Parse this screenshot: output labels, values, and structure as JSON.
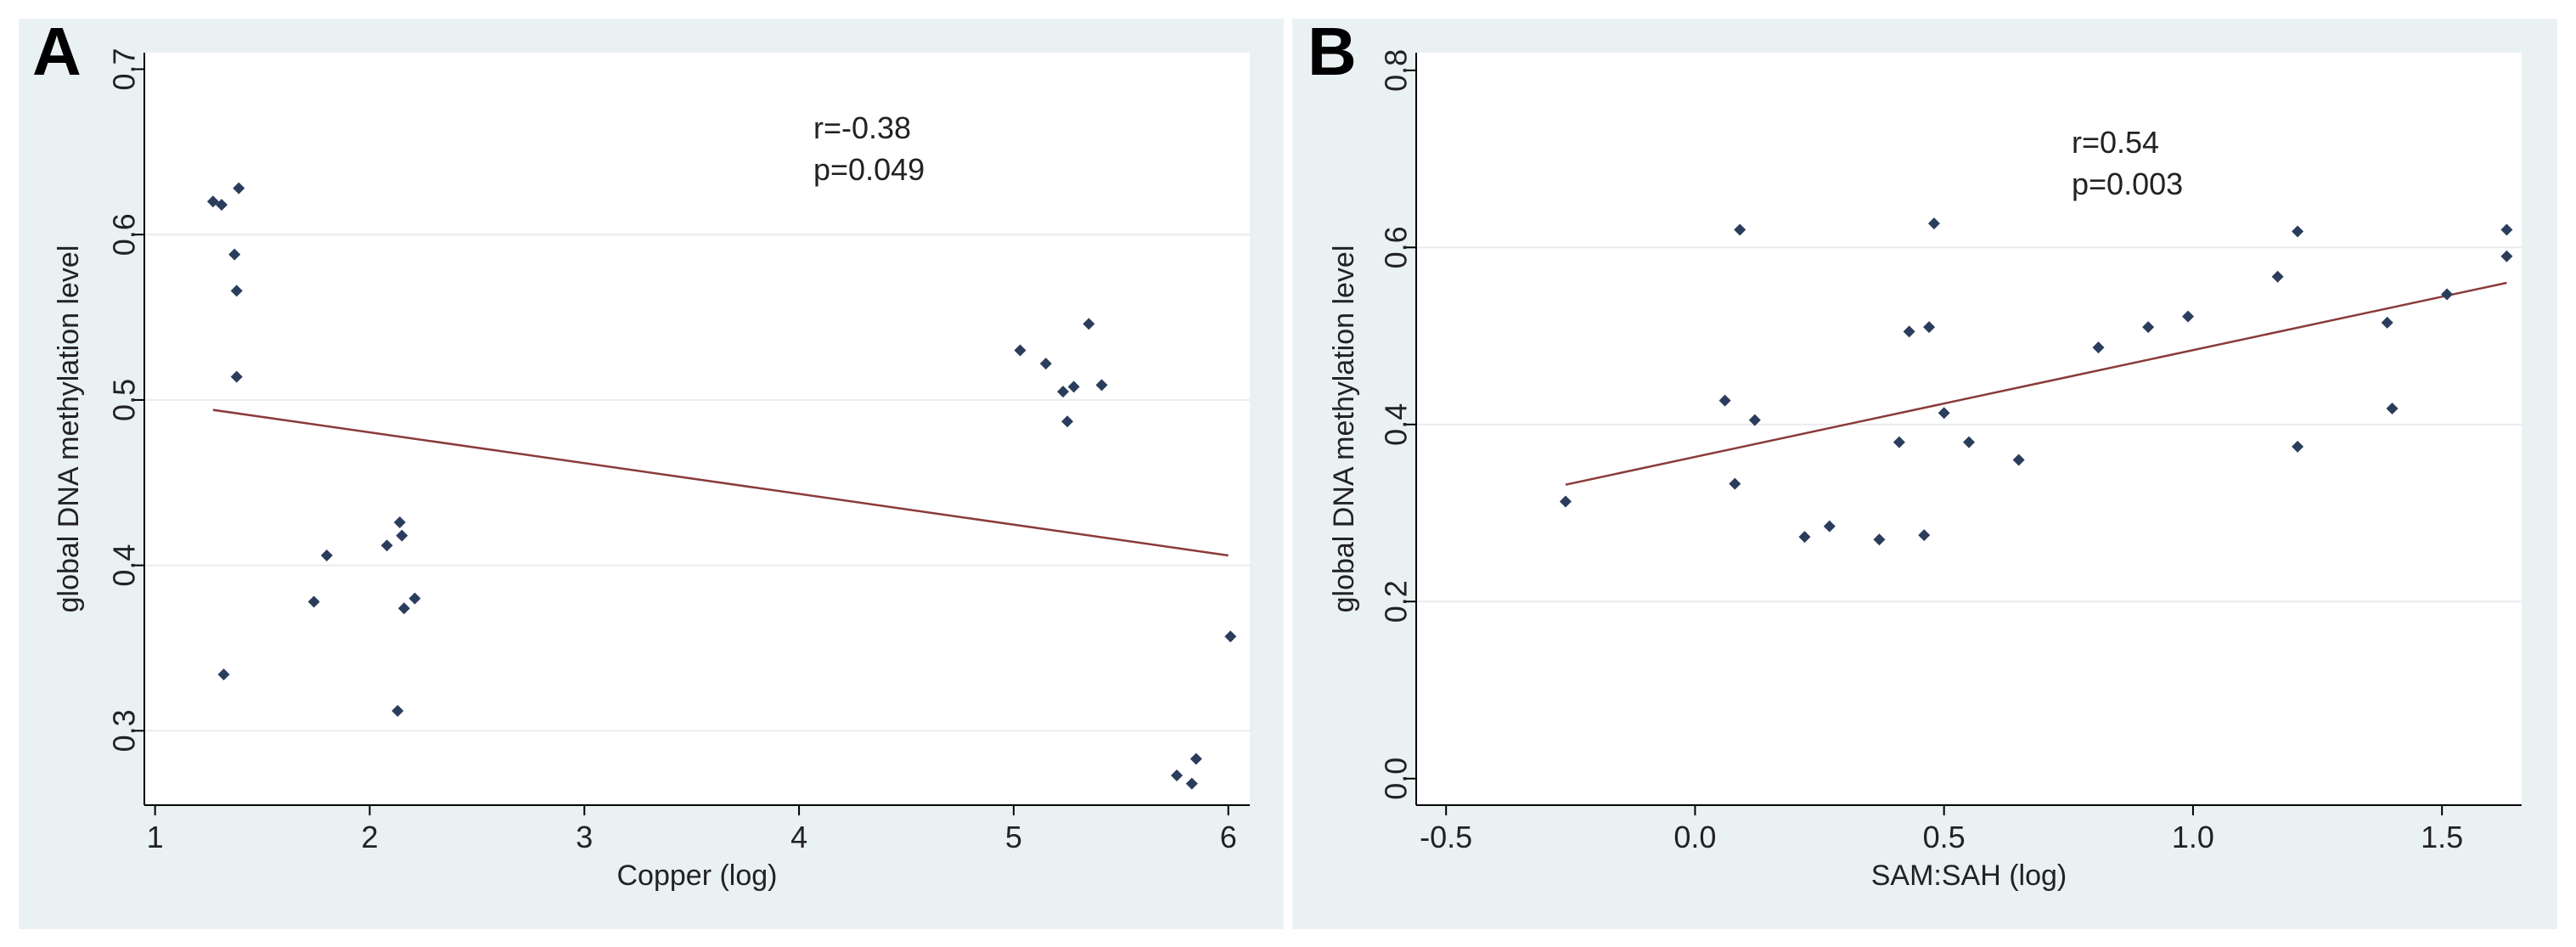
{
  "chart_data": [
    {
      "panel_label": "A",
      "type": "scatter",
      "xlabel": "Copper (log)",
      "ylabel": "global DNA methylation level",
      "xlim": [
        0.95,
        6.1
      ],
      "ylim": [
        0.255,
        0.71
      ],
      "xticks": [
        1,
        2,
        3,
        4,
        5,
        6
      ],
      "xtick_labels": [
        "1",
        "2",
        "3",
        "4",
        "5",
        "6"
      ],
      "yticks": [
        0.3,
        0.4,
        0.5,
        0.6,
        0.7
      ],
      "ytick_labels": [
        "0.3",
        "0.4",
        "0.5",
        "0.6",
        "0.7"
      ],
      "gridlines_y": [
        0.3,
        0.4,
        0.5,
        0.6
      ],
      "annotations": [
        "r=-0.38",
        "p=0.049"
      ],
      "points": [
        [
          1.27,
          0.62
        ],
        [
          1.31,
          0.618
        ],
        [
          1.39,
          0.628
        ],
        [
          1.37,
          0.588
        ],
        [
          1.38,
          0.566
        ],
        [
          1.38,
          0.514
        ],
        [
          1.32,
          0.334
        ],
        [
          1.8,
          0.406
        ],
        [
          1.74,
          0.378
        ],
        [
          2.08,
          0.412
        ],
        [
          2.15,
          0.418
        ],
        [
          2.14,
          0.426
        ],
        [
          2.21,
          0.38
        ],
        [
          2.16,
          0.374
        ],
        [
          2.13,
          0.312
        ],
        [
          5.03,
          0.53
        ],
        [
          5.15,
          0.522
        ],
        [
          5.35,
          0.546
        ],
        [
          5.23,
          0.505
        ],
        [
          5.28,
          0.508
        ],
        [
          5.41,
          0.509
        ],
        [
          5.25,
          0.487
        ],
        [
          5.76,
          0.273
        ],
        [
          5.85,
          0.283
        ],
        [
          5.83,
          0.268
        ],
        [
          6.01,
          0.357
        ]
      ],
      "fit_line": {
        "x": [
          1.27,
          6.0
        ],
        "y": [
          0.494,
          0.406
        ]
      },
      "marker_color": "#2b3d5c",
      "line_color": "#8b3a3a"
    },
    {
      "panel_label": "B",
      "type": "scatter",
      "xlabel": "SAM:SAH (log)",
      "ylabel": "global DNA methylation level",
      "xlim": [
        -0.56,
        1.66
      ],
      "ylim": [
        -0.03,
        0.82
      ],
      "xticks": [
        -0.5,
        0.0,
        0.5,
        1.0,
        1.5
      ],
      "xtick_labels": [
        "-0.5",
        "0.0",
        "0.5",
        "1.0",
        "1.5"
      ],
      "yticks": [
        0.0,
        0.2,
        0.4,
        0.6,
        0.8
      ],
      "ytick_labels": [
        "0.0",
        "0.2",
        "0.4",
        "0.6",
        "0.8"
      ],
      "gridlines_y": [
        0.2,
        0.4,
        0.6
      ],
      "annotations": [
        "r=0.54",
        "p=0.003"
      ],
      "points": [
        [
          -0.26,
          0.313
        ],
        [
          0.06,
          0.427
        ],
        [
          0.08,
          0.333
        ],
        [
          0.09,
          0.62
        ],
        [
          0.12,
          0.405
        ],
        [
          0.22,
          0.273
        ],
        [
          0.27,
          0.285
        ],
        [
          0.37,
          0.27
        ],
        [
          0.41,
          0.38
        ],
        [
          0.43,
          0.505
        ],
        [
          0.46,
          0.275
        ],
        [
          0.47,
          0.51
        ],
        [
          0.48,
          0.627
        ],
        [
          0.5,
          0.413
        ],
        [
          0.55,
          0.38
        ],
        [
          0.65,
          0.36
        ],
        [
          0.81,
          0.487
        ],
        [
          0.91,
          0.51
        ],
        [
          0.99,
          0.522
        ],
        [
          1.17,
          0.567
        ],
        [
          1.21,
          0.618
        ],
        [
          1.21,
          0.375
        ],
        [
          1.39,
          0.515
        ],
        [
          1.4,
          0.418
        ],
        [
          1.51,
          0.547
        ],
        [
          1.63,
          0.62
        ],
        [
          1.63,
          0.59
        ]
      ],
      "fit_line": {
        "x": [
          -0.26,
          1.63
        ],
        "y": [
          0.332,
          0.56
        ]
      },
      "marker_color": "#2b3d5c",
      "line_color": "#8b3a3a"
    }
  ]
}
